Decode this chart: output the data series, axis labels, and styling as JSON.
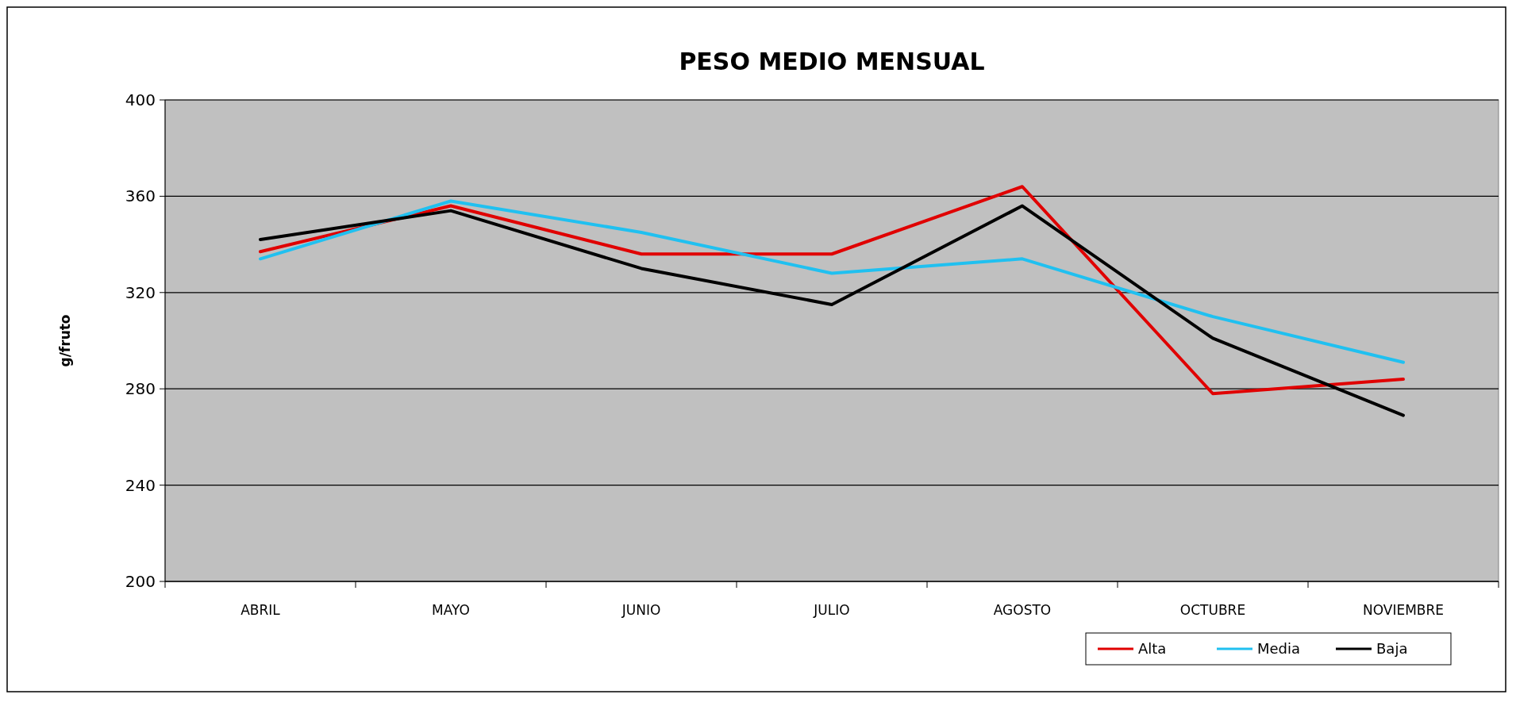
{
  "chart_data": {
    "type": "line",
    "title": "PESO MEDIO MENSUAL",
    "ylabel": "g/fruto",
    "categories": [
      "ABRIL",
      "MAYO",
      "JUNIO",
      "JULIO",
      "AGOSTO",
      "OCTUBRE",
      "NOVIEMBRE"
    ],
    "series": [
      {
        "name": "Alta",
        "color": "#e00000",
        "values": [
          337,
          356,
          336,
          336,
          364,
          278,
          284
        ]
      },
      {
        "name": "Media",
        "color": "#20c0f0",
        "values": [
          334,
          358,
          345,
          328,
          334,
          310,
          291
        ]
      },
      {
        "name": "Baja",
        "color": "#000000",
        "values": [
          342,
          354,
          330,
          315,
          356,
          301,
          269
        ]
      }
    ],
    "ylim": [
      200,
      400
    ],
    "yticks": [
      200,
      240,
      280,
      320,
      360,
      400
    ],
    "grid": "y",
    "legend": "bottom right",
    "marker": "none",
    "line_style": "solid"
  }
}
